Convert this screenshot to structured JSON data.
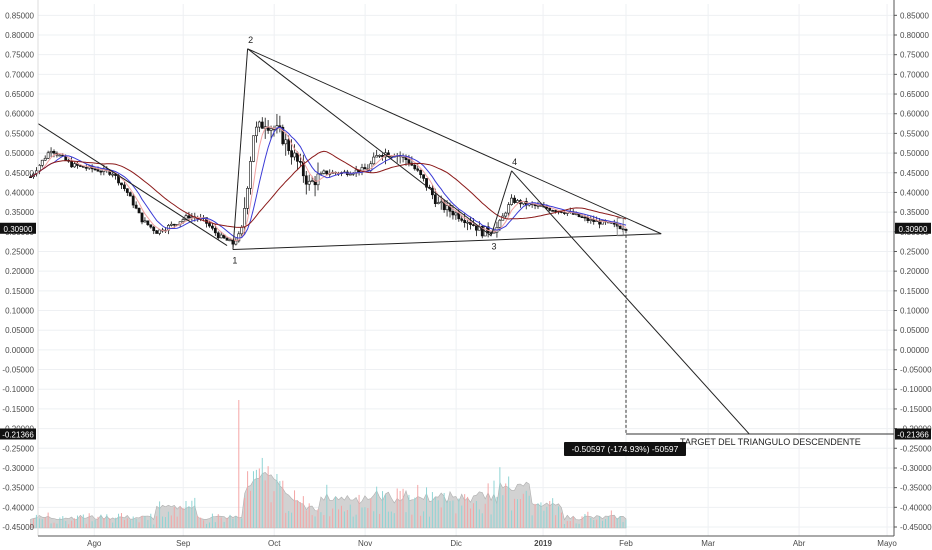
{
  "chart_data": {
    "type": "candlestick",
    "ylim": [
      -0.465,
      0.87
    ],
    "y_ticks": [
      "0.85000",
      "0.80000",
      "0.75000",
      "0.70000",
      "0.65000",
      "0.60000",
      "0.55000",
      "0.50000",
      "0.45000",
      "0.40000",
      "0.35000",
      "0.30000",
      "0.25000",
      "0.20000",
      "0.15000",
      "0.10000",
      "0.05000",
      "0.00000",
      "-0.05000",
      "-0.10000",
      "-0.15000",
      "-0.20000",
      "-0.25000",
      "-0.30000",
      "-0.35000",
      "-0.40000",
      "-0.45000"
    ],
    "x_labels": [
      "Ago",
      "Sep",
      "Oct",
      "Nov",
      "Dic",
      "2019",
      "Feb",
      "Mar",
      "Abr",
      "Mayo"
    ],
    "current_price": {
      "value": 0.309,
      "label": "0.30900"
    },
    "target_price": {
      "value": -0.21366,
      "label": "-0.21366"
    },
    "measure_label": "-0.50597 (-174.93%) -50597",
    "target_text": "TARGET DEL TRIANGULO DESCENDENTE",
    "pivots": [
      {
        "label": "1",
        "date": "2018-09-20",
        "price": 0.255
      },
      {
        "label": "2",
        "date": "2018-09-25",
        "price": 0.765
      },
      {
        "label": "3",
        "date": "2018-12-17",
        "price": 0.29
      },
      {
        "label": "4",
        "date": "2018-12-24",
        "price": 0.455
      }
    ],
    "close_series": [
      [
        "2018-07-13",
        0.44
      ],
      [
        "2018-07-20",
        0.51
      ],
      [
        "2018-07-27",
        0.47
      ],
      [
        "2018-08-03",
        0.46
      ],
      [
        "2018-08-10",
        0.45
      ],
      [
        "2018-08-15",
        0.4
      ],
      [
        "2018-08-20",
        0.33
      ],
      [
        "2018-08-25",
        0.3
      ],
      [
        "2018-08-31",
        0.32
      ],
      [
        "2018-09-05",
        0.34
      ],
      [
        "2018-09-10",
        0.33
      ],
      [
        "2018-09-15",
        0.29
      ],
      [
        "2018-09-20",
        0.27
      ],
      [
        "2018-09-23",
        0.3
      ],
      [
        "2018-09-27",
        0.55
      ],
      [
        "2018-10-01",
        0.58
      ],
      [
        "2018-10-06",
        0.55
      ],
      [
        "2018-10-11",
        0.49
      ],
      [
        "2018-10-16",
        0.42
      ],
      [
        "2018-10-21",
        0.45
      ],
      [
        "2018-10-28",
        0.45
      ],
      [
        "2018-11-05",
        0.46
      ],
      [
        "2018-11-09",
        0.5
      ],
      [
        "2018-11-14",
        0.5
      ],
      [
        "2018-11-19",
        0.48
      ],
      [
        "2018-11-24",
        0.43
      ],
      [
        "2018-11-29",
        0.37
      ],
      [
        "2018-12-04",
        0.35
      ],
      [
        "2018-12-09",
        0.33
      ],
      [
        "2018-12-14",
        0.3
      ],
      [
        "2018-12-19",
        0.31
      ],
      [
        "2018-12-24",
        0.38
      ],
      [
        "2018-12-29",
        0.37
      ],
      [
        "2019-01-05",
        0.36
      ],
      [
        "2019-01-12",
        0.35
      ],
      [
        "2019-01-19",
        0.33
      ],
      [
        "2019-01-26",
        0.32
      ],
      [
        "2019-02-01",
        0.309
      ]
    ]
  }
}
